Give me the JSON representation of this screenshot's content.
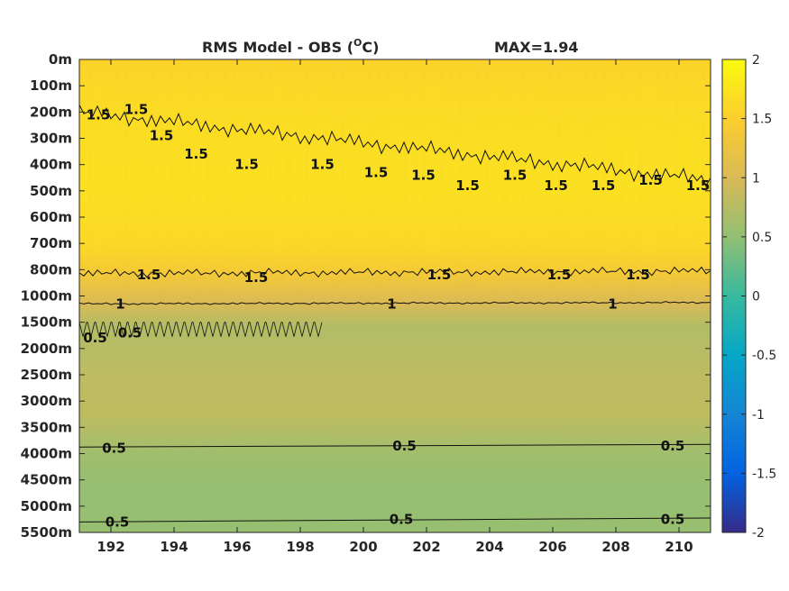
{
  "chart_data": {
    "type": "heatmap",
    "title": "RMS Model - OBS (",
    "title_unit_sup": "O",
    "title_unit_tail": "C)",
    "max_label": "MAX=1.94",
    "x_ticks": [
      "192",
      "194",
      "196",
      "198",
      "200",
      "202",
      "204",
      "206",
      "208",
      "210"
    ],
    "x_tick_values": [
      192,
      194,
      196,
      198,
      200,
      202,
      204,
      206,
      208,
      210
    ],
    "xlim": [
      191,
      211
    ],
    "y_ticks": [
      "0m",
      "100m",
      "200m",
      "300m",
      "400m",
      "500m",
      "600m",
      "700m",
      "800m",
      "1000m",
      "1500m",
      "2000m",
      "2500m",
      "3000m",
      "3500m",
      "4000m",
      "4500m",
      "5000m",
      "5500m"
    ],
    "colorbar_ticks": [
      "2",
      "1.5",
      "1",
      "0.5",
      "0",
      "-0.5",
      "-1",
      "-1.5",
      "-2"
    ],
    "colorbar_values": [
      2,
      1.5,
      1,
      0.5,
      0,
      -0.5,
      -1,
      -1.5,
      -2
    ],
    "clim": [
      -2,
      2
    ],
    "colormap": "parula",
    "colormap_stops": [
      "#352a87",
      "#0363e1",
      "#1485d4",
      "#06a7c6",
      "#38b99e",
      "#92bf73",
      "#d9ba56",
      "#fcce2e",
      "#f9fb0e"
    ],
    "field_profile": [
      {
        "depth_index": 0,
        "value": 1.55
      },
      {
        "depth_index": 1,
        "value": 1.62
      },
      {
        "depth_index": 3,
        "value": 1.68
      },
      {
        "depth_index": 5,
        "value": 1.7
      },
      {
        "depth_index": 7,
        "value": 1.62
      },
      {
        "depth_index": 8,
        "value": 1.42
      },
      {
        "depth_index": 9.3,
        "value": 1.0
      },
      {
        "depth_index": 10.2,
        "value": 0.72
      },
      {
        "depth_index": 12,
        "value": 0.8
      },
      {
        "depth_index": 13.5,
        "value": 0.82
      },
      {
        "depth_index": 15,
        "value": 0.6
      },
      {
        "depth_index": 16.5,
        "value": 0.52
      },
      {
        "depth_index": 18,
        "value": 0.55
      }
    ],
    "contour_labels": [
      {
        "text": "1.5",
        "x": 191.6,
        "depth_index": 2.1
      },
      {
        "text": "1.5",
        "x": 192.8,
        "depth_index": 1.9
      },
      {
        "text": "1.5",
        "x": 193.6,
        "depth_index": 2.9
      },
      {
        "text": "1.5",
        "x": 194.7,
        "depth_index": 3.6
      },
      {
        "text": "1.5",
        "x": 196.3,
        "depth_index": 4.0
      },
      {
        "text": "1.5",
        "x": 198.7,
        "depth_index": 4.0
      },
      {
        "text": "1.5",
        "x": 200.4,
        "depth_index": 4.3
      },
      {
        "text": "1.5",
        "x": 201.9,
        "depth_index": 4.4
      },
      {
        "text": "1.5",
        "x": 203.3,
        "depth_index": 4.8
      },
      {
        "text": "1.5",
        "x": 204.8,
        "depth_index": 4.4
      },
      {
        "text": "1.5",
        "x": 206.1,
        "depth_index": 4.8
      },
      {
        "text": "1.5",
        "x": 207.6,
        "depth_index": 4.8
      },
      {
        "text": "1.5",
        "x": 209.1,
        "depth_index": 4.6
      },
      {
        "text": "1.5",
        "x": 210.6,
        "depth_index": 4.8
      },
      {
        "text": "1.5",
        "x": 193.2,
        "depth_index": 8.2
      },
      {
        "text": "1.5",
        "x": 196.6,
        "depth_index": 8.3
      },
      {
        "text": "1.5",
        "x": 202.4,
        "depth_index": 8.2
      },
      {
        "text": "1.5",
        "x": 206.2,
        "depth_index": 8.2
      },
      {
        "text": "1.5",
        "x": 208.7,
        "depth_index": 8.2
      },
      {
        "text": "1",
        "x": 192.3,
        "depth_index": 9.3
      },
      {
        "text": "1",
        "x": 200.9,
        "depth_index": 9.3
      },
      {
        "text": "1",
        "x": 207.9,
        "depth_index": 9.3
      },
      {
        "text": "0.5",
        "x": 191.5,
        "depth_index": 10.6
      },
      {
        "text": "0.5",
        "x": 192.6,
        "depth_index": 10.4
      },
      {
        "text": "0.5",
        "x": 192.1,
        "depth_index": 14.8
      },
      {
        "text": "0.5",
        "x": 201.3,
        "depth_index": 14.7
      },
      {
        "text": "0.5",
        "x": 209.8,
        "depth_index": 14.7
      },
      {
        "text": "0.5",
        "x": 192.2,
        "depth_index": 17.6
      },
      {
        "text": "0.5",
        "x": 201.2,
        "depth_index": 17.5
      },
      {
        "text": "0.5",
        "x": 209.8,
        "depth_index": 17.5
      }
    ]
  }
}
